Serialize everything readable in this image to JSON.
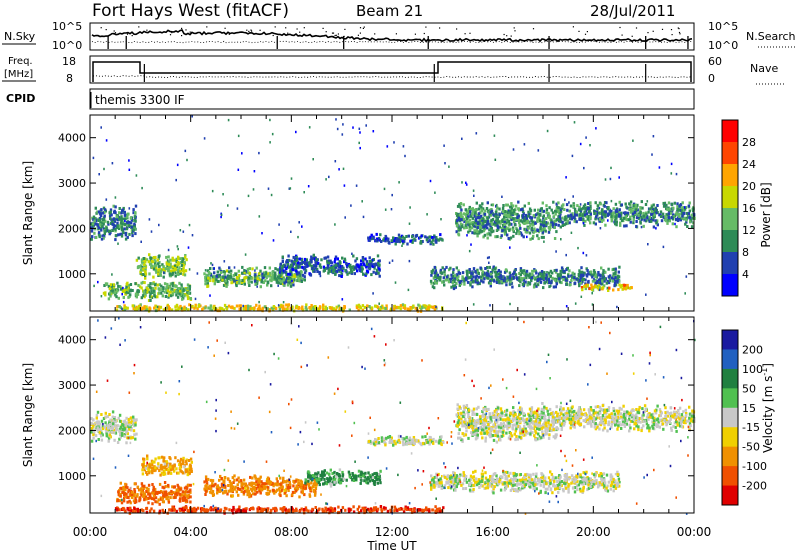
{
  "header": {
    "station": "Fort Hays West (fitACF)",
    "beam": "Beam 21",
    "date": "28/Jul/2011"
  },
  "noise_panel": {
    "left_label": "N.Sky",
    "left_ticks": [
      "10^5",
      "10^0"
    ],
    "right_label": "N.Search",
    "right_ticks": [
      "10^5",
      "10^0"
    ]
  },
  "freq_panel": {
    "left_label_top": "Freq.",
    "left_label_bottom": "[MHz]",
    "left_ticks": [
      "18",
      "8"
    ],
    "right_label": "Nave",
    "right_ticks": [
      "60",
      "0"
    ]
  },
  "cpid_panel": {
    "label": "CPID",
    "value": "themis 3300 IF"
  },
  "colors": {
    "power": [
      "#0000ff",
      "#2040b0",
      "#2e8b57",
      "#66bb66",
      "#c8d800",
      "#ffa500",
      "#ff4500",
      "#ff0000"
    ],
    "velocity": [
      "#1a1aa0",
      "#2060c0",
      "#208040",
      "#50c050",
      "#c8c8c8",
      "#f0d000",
      "#f09000",
      "#f05000",
      "#e00000"
    ]
  },
  "chart_data": [
    {
      "type": "heatmap",
      "name": "Power",
      "xlabel": "",
      "ylabel": "Slant Range [km]",
      "x_ticks": [
        "00:00",
        "04:00",
        "08:00",
        "12:00",
        "16:00",
        "20:00",
        "00:00"
      ],
      "x_range_hours": [
        0,
        24
      ],
      "y_ticks": [
        1000,
        2000,
        3000,
        4000
      ],
      "y_range_km": [
        180,
        4500
      ],
      "colorbar": {
        "label": "Power [dB]",
        "ticks": [
          4,
          8,
          12,
          16,
          20,
          24,
          28
        ],
        "range": [
          0,
          32
        ]
      },
      "scatter_regions": [
        {
          "t_start": 0.0,
          "t_end": 1.8,
          "r_center": 2150,
          "r_halfwidth": 420,
          "power": 9
        },
        {
          "t_start": 1.8,
          "t_end": 3.8,
          "r_center": 1200,
          "r_halfwidth": 280,
          "power": 15
        },
        {
          "t_start": 0.5,
          "t_end": 4.0,
          "r_center": 650,
          "r_halfwidth": 220,
          "power": 13
        },
        {
          "t_start": 1.0,
          "t_end": 14.0,
          "r_center": 280,
          "r_halfwidth": 80,
          "power": 19
        },
        {
          "t_start": 4.5,
          "t_end": 8.5,
          "r_center": 950,
          "r_halfwidth": 250,
          "power": 12
        },
        {
          "t_start": 7.5,
          "t_end": 11.5,
          "r_center": 1200,
          "r_halfwidth": 250,
          "power": 7
        },
        {
          "t_start": 11.0,
          "t_end": 14.0,
          "r_center": 1800,
          "r_halfwidth": 120,
          "power": 7
        },
        {
          "t_start": 13.5,
          "t_end": 21.0,
          "r_center": 950,
          "r_halfwidth": 250,
          "power": 9
        },
        {
          "t_start": 14.5,
          "t_end": 18.5,
          "r_center": 2200,
          "r_halfwidth": 450,
          "power": 11
        },
        {
          "t_start": 18.5,
          "t_end": 24.0,
          "r_center": 2350,
          "r_halfwidth": 300,
          "power": 10
        },
        {
          "t_start": 19.5,
          "t_end": 21.5,
          "r_center": 720,
          "r_halfwidth": 80,
          "power": 20
        }
      ]
    },
    {
      "type": "heatmap",
      "name": "Velocity",
      "xlabel": "Time UT",
      "ylabel": "Slant Range [km]",
      "x_ticks": [
        "00:00",
        "04:00",
        "08:00",
        "12:00",
        "16:00",
        "20:00",
        "00:00"
      ],
      "x_range_hours": [
        0,
        24
      ],
      "y_ticks": [
        1000,
        2000,
        3000,
        4000
      ],
      "y_range_km": [
        180,
        4500
      ],
      "colorbar": {
        "label": "Velocity [m s^-1]",
        "ticks": [
          "200",
          "100",
          "50",
          "15",
          "-15",
          "-50",
          "-100",
          "-200"
        ],
        "range": [
          -250,
          250
        ]
      },
      "scatter_regions": [
        {
          "t_start": 0.0,
          "t_end": 1.8,
          "r_center": 2100,
          "r_halfwidth": 350,
          "velocity": 0
        },
        {
          "t_start": 2.0,
          "t_end": 4.0,
          "r_center": 1250,
          "r_halfwidth": 250,
          "velocity": -40
        },
        {
          "t_start": 1.0,
          "t_end": 4.0,
          "r_center": 650,
          "r_halfwidth": 250,
          "velocity": -80
        },
        {
          "t_start": 1.0,
          "t_end": 14.0,
          "r_center": 280,
          "r_halfwidth": 80,
          "velocity": -140
        },
        {
          "t_start": 4.5,
          "t_end": 9.0,
          "r_center": 800,
          "r_halfwidth": 250,
          "velocity": -60
        },
        {
          "t_start": 8.5,
          "t_end": 11.5,
          "r_center": 1000,
          "r_halfwidth": 200,
          "velocity": 40
        },
        {
          "t_start": 11.0,
          "t_end": 14.0,
          "r_center": 1800,
          "r_halfwidth": 120,
          "velocity": 0
        },
        {
          "t_start": 13.5,
          "t_end": 21.0,
          "r_center": 900,
          "r_halfwidth": 250,
          "velocity": 0
        },
        {
          "t_start": 14.5,
          "t_end": 18.5,
          "r_center": 2200,
          "r_halfwidth": 450,
          "velocity": 0
        },
        {
          "t_start": 18.5,
          "t_end": 24.0,
          "r_center": 2300,
          "r_halfwidth": 300,
          "velocity": 0
        }
      ]
    }
  ]
}
